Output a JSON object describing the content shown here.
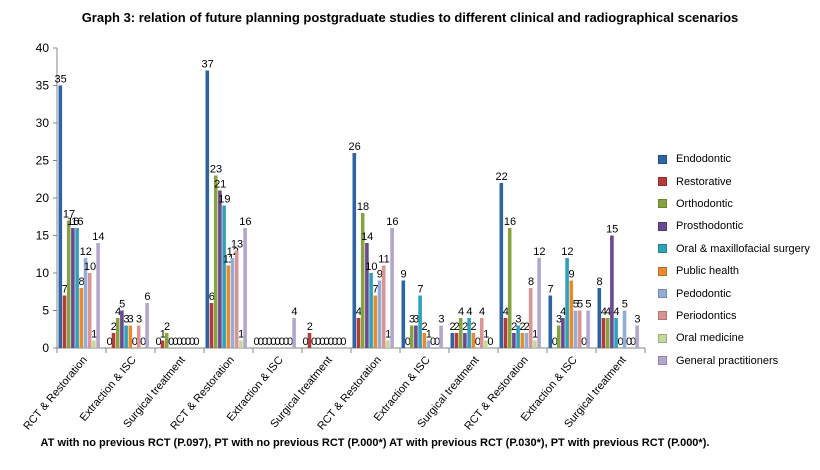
{
  "chart_data": {
    "type": "bar",
    "title": "Graph 3: relation of future planning postgraduate studies to different clinical and radiographical scenarios",
    "ylim": [
      0,
      40
    ],
    "yticks": [
      0,
      5,
      10,
      15,
      20,
      25,
      30,
      35,
      40
    ],
    "grid": false,
    "legend_position": "right",
    "categories": [
      "RCT & Restoration",
      "Extraction & ISC",
      "Surgical  treatment",
      "RCT & Restoration",
      "Extraction & ISC",
      "Surgical  treatment",
      "RCT & Restoration",
      "Extraction & ISC",
      "Surgical  treatment",
      "RCT & Restoration",
      "Extraction & ISC",
      "Surgical  treatment"
    ],
    "series": [
      {
        "name": "Endodontic",
        "color": "#2E63A6",
        "values": [
          35,
          0,
          0,
          37,
          0,
          0,
          26,
          9,
          2,
          22,
          7,
          8
        ]
      },
      {
        "name": "Restorative",
        "color": "#B23C37",
        "values": [
          7,
          2,
          1,
          6,
          0,
          2,
          4,
          0,
          2,
          4,
          0,
          4
        ]
      },
      {
        "name": "Orthodontic",
        "color": "#86A33F",
        "values": [
          17,
          4,
          2,
          23,
          0,
          0,
          18,
          3,
          4,
          16,
          3,
          4
        ]
      },
      {
        "name": "Prosthodontic",
        "color": "#6A4990",
        "values": [
          16,
          5,
          0,
          21,
          0,
          0,
          14,
          3,
          2,
          2,
          4,
          15
        ]
      },
      {
        "name": "Oral & maxillofacial surgery",
        "color": "#2FA1BA",
        "values": [
          16,
          3,
          0,
          19,
          0,
          0,
          10,
          7,
          4,
          3,
          12,
          4
        ]
      },
      {
        "name": "Public health",
        "color": "#E88B2E",
        "values": [
          8,
          3,
          0,
          11,
          0,
          0,
          7,
          2,
          2,
          2,
          9,
          0
        ]
      },
      {
        "name": "Pedodontic",
        "color": "#93AED6",
        "values": [
          12,
          0,
          0,
          12,
          0,
          0,
          9,
          1,
          0,
          2,
          5,
          5
        ]
      },
      {
        "name": "Periodontics",
        "color": "#DA9592",
        "values": [
          10,
          3,
          0,
          13,
          0,
          0,
          11,
          0,
          4,
          8,
          5,
          0
        ]
      },
      {
        "name": "Oral medicine",
        "color": "#C3D89B",
        "values": [
          1,
          0,
          0,
          1,
          0,
          0,
          1,
          0,
          1,
          1,
          0,
          0
        ]
      },
      {
        "name": "General practitioners",
        "color": "#B3A6CC",
        "values": [
          14,
          6,
          0,
          16,
          4,
          0,
          16,
          3,
          0,
          12,
          5,
          3
        ]
      }
    ],
    "footnote": "AT  with no previous RCT (P.097),   PT with no previous RCT (P.000*)   AT with previous RCT (P.030*),   PT with previous RCT (P.000*)."
  }
}
